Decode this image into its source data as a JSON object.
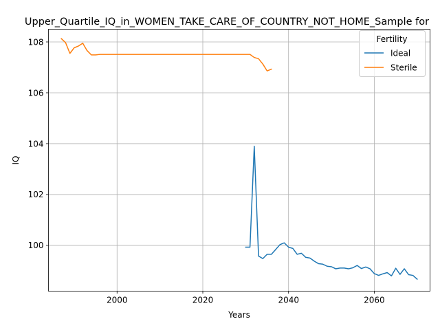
{
  "chart_data": {
    "type": "line",
    "title": "Upper_Quartile_IQ_in_WOMEN_TAKE_CARE_OF_COUNTRY_NOT_HOME_Sample for",
    "xlabel": "Years",
    "ylabel": "IQ",
    "xlim": [
      1984,
      2073
    ],
    "ylim": [
      98.2,
      108.5
    ],
    "xticks": [
      2000,
      2020,
      2040,
      2060
    ],
    "yticks": [
      100,
      102,
      104,
      106,
      108
    ],
    "grid": true,
    "legend": {
      "title": "Fertility",
      "placement": "top-right"
    },
    "series": [
      {
        "name": "Ideal",
        "color": "#1f77b4",
        "x": [
          2030,
          2031,
          2032,
          2033,
          2034,
          2035,
          2036,
          2037,
          2038,
          2039,
          2040,
          2041,
          2042,
          2043,
          2044,
          2045,
          2046,
          2047,
          2048,
          2049,
          2050,
          2051,
          2052,
          2053,
          2054,
          2055,
          2056,
          2057,
          2058,
          2059,
          2060,
          2061,
          2062,
          2063,
          2064,
          2065,
          2066,
          2067,
          2068,
          2069,
          2070
        ],
        "y": [
          99.93,
          99.93,
          103.9,
          99.58,
          99.48,
          99.65,
          99.65,
          99.84,
          100.03,
          100.1,
          99.93,
          99.88,
          99.65,
          99.69,
          99.53,
          99.5,
          99.38,
          99.28,
          99.26,
          99.18,
          99.16,
          99.08,
          99.11,
          99.11,
          99.08,
          99.12,
          99.21,
          99.09,
          99.15,
          99.08,
          98.89,
          98.82,
          98.88,
          98.93,
          98.8,
          99.1,
          98.86,
          99.08,
          98.85,
          98.82,
          98.67
        ]
      },
      {
        "name": "Sterile",
        "color": "#ff7f0e",
        "x": [
          1987,
          1988,
          1989,
          1990,
          1991,
          1992,
          1993,
          1994,
          1995,
          1996,
          1997,
          1998,
          1999,
          2000,
          2001,
          2002,
          2003,
          2004,
          2005,
          2006,
          2007,
          2008,
          2009,
          2010,
          2011,
          2012,
          2013,
          2014,
          2015,
          2016,
          2017,
          2018,
          2019,
          2020,
          2021,
          2022,
          2023,
          2024,
          2025,
          2026,
          2027,
          2028,
          2029,
          2030,
          2031,
          2032,
          2033,
          2034,
          2035,
          2036
        ],
        "y": [
          108.13,
          107.97,
          107.55,
          107.77,
          107.84,
          107.95,
          107.66,
          107.49,
          107.49,
          107.51,
          107.51,
          107.51,
          107.51,
          107.51,
          107.51,
          107.51,
          107.51,
          107.51,
          107.51,
          107.51,
          107.51,
          107.51,
          107.51,
          107.51,
          107.51,
          107.51,
          107.51,
          107.51,
          107.51,
          107.51,
          107.51,
          107.51,
          107.51,
          107.51,
          107.51,
          107.51,
          107.51,
          107.51,
          107.51,
          107.51,
          107.51,
          107.51,
          107.51,
          107.51,
          107.51,
          107.39,
          107.34,
          107.13,
          106.86,
          106.93
        ]
      }
    ]
  }
}
